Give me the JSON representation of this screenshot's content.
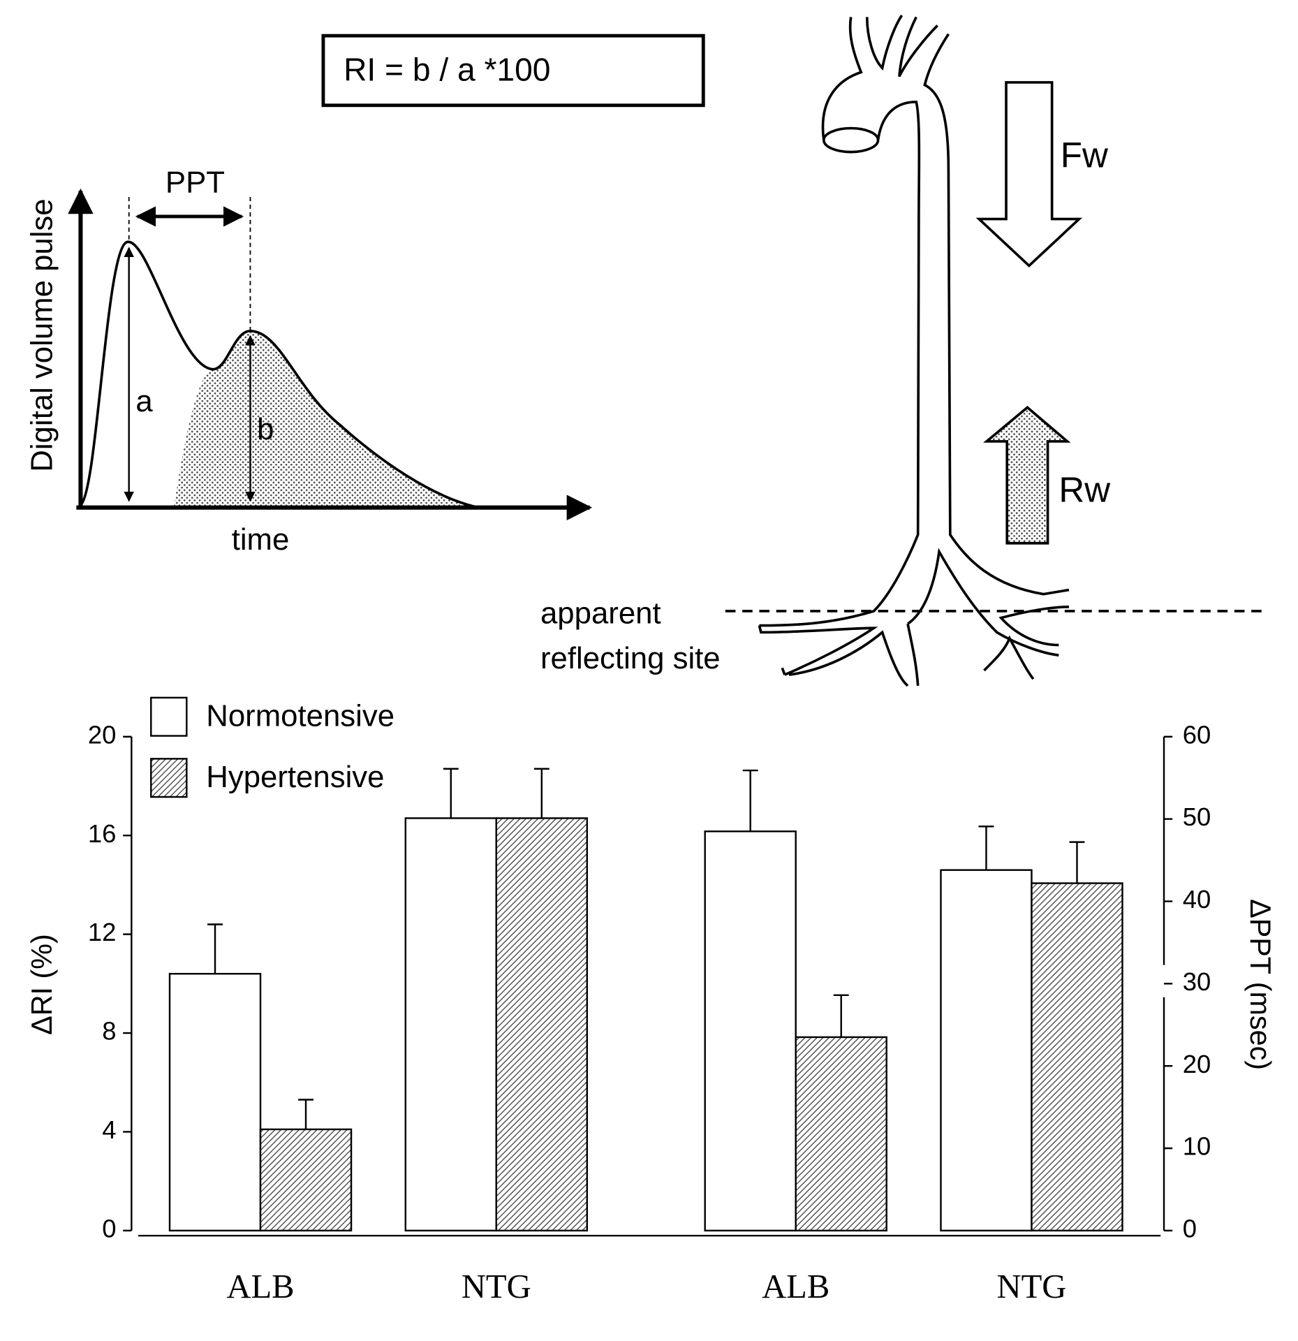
{
  "diagram": {
    "formula": "RI = b / a *100",
    "pulse_y_label": "Digital volume pulse",
    "pulse_x_label": "time",
    "ppt_label": "PPT",
    "a_label": "a",
    "b_label": "b",
    "forward_label": "Fw",
    "reflected_label": "Rw",
    "site_label_1": "apparent",
    "site_label_2": "reflecting site"
  },
  "chart_data": {
    "type": "bar",
    "categories": [
      "ALB",
      "NTG",
      "ALB",
      "NTG"
    ],
    "category_axis": [
      "y",
      "y",
      "y2",
      "y2"
    ],
    "series": [
      {
        "name": "Normotensive",
        "color": "#ffffff",
        "pattern": "none",
        "values": [
          10.4,
          16.7,
          48.5,
          43.8
        ],
        "errors": [
          2.0,
          2.0,
          7.4,
          5.3
        ]
      },
      {
        "name": "Hypertensive",
        "color": "#ffffff",
        "pattern": "hatch",
        "values": [
          4.1,
          16.7,
          23.5,
          42.2
        ],
        "errors": [
          1.2,
          2.0,
          5.1,
          5.0
        ]
      }
    ],
    "ylabel": "ΔRI (%)",
    "ylim": [
      0,
      20
    ],
    "yticks": [
      0,
      4,
      8,
      12,
      16,
      20
    ],
    "y2label": "ΔPPT (msec)",
    "y2lim": [
      0,
      60
    ],
    "y2ticks": [
      0,
      10,
      20,
      30,
      40,
      50,
      60
    ],
    "y2break": 30
  }
}
